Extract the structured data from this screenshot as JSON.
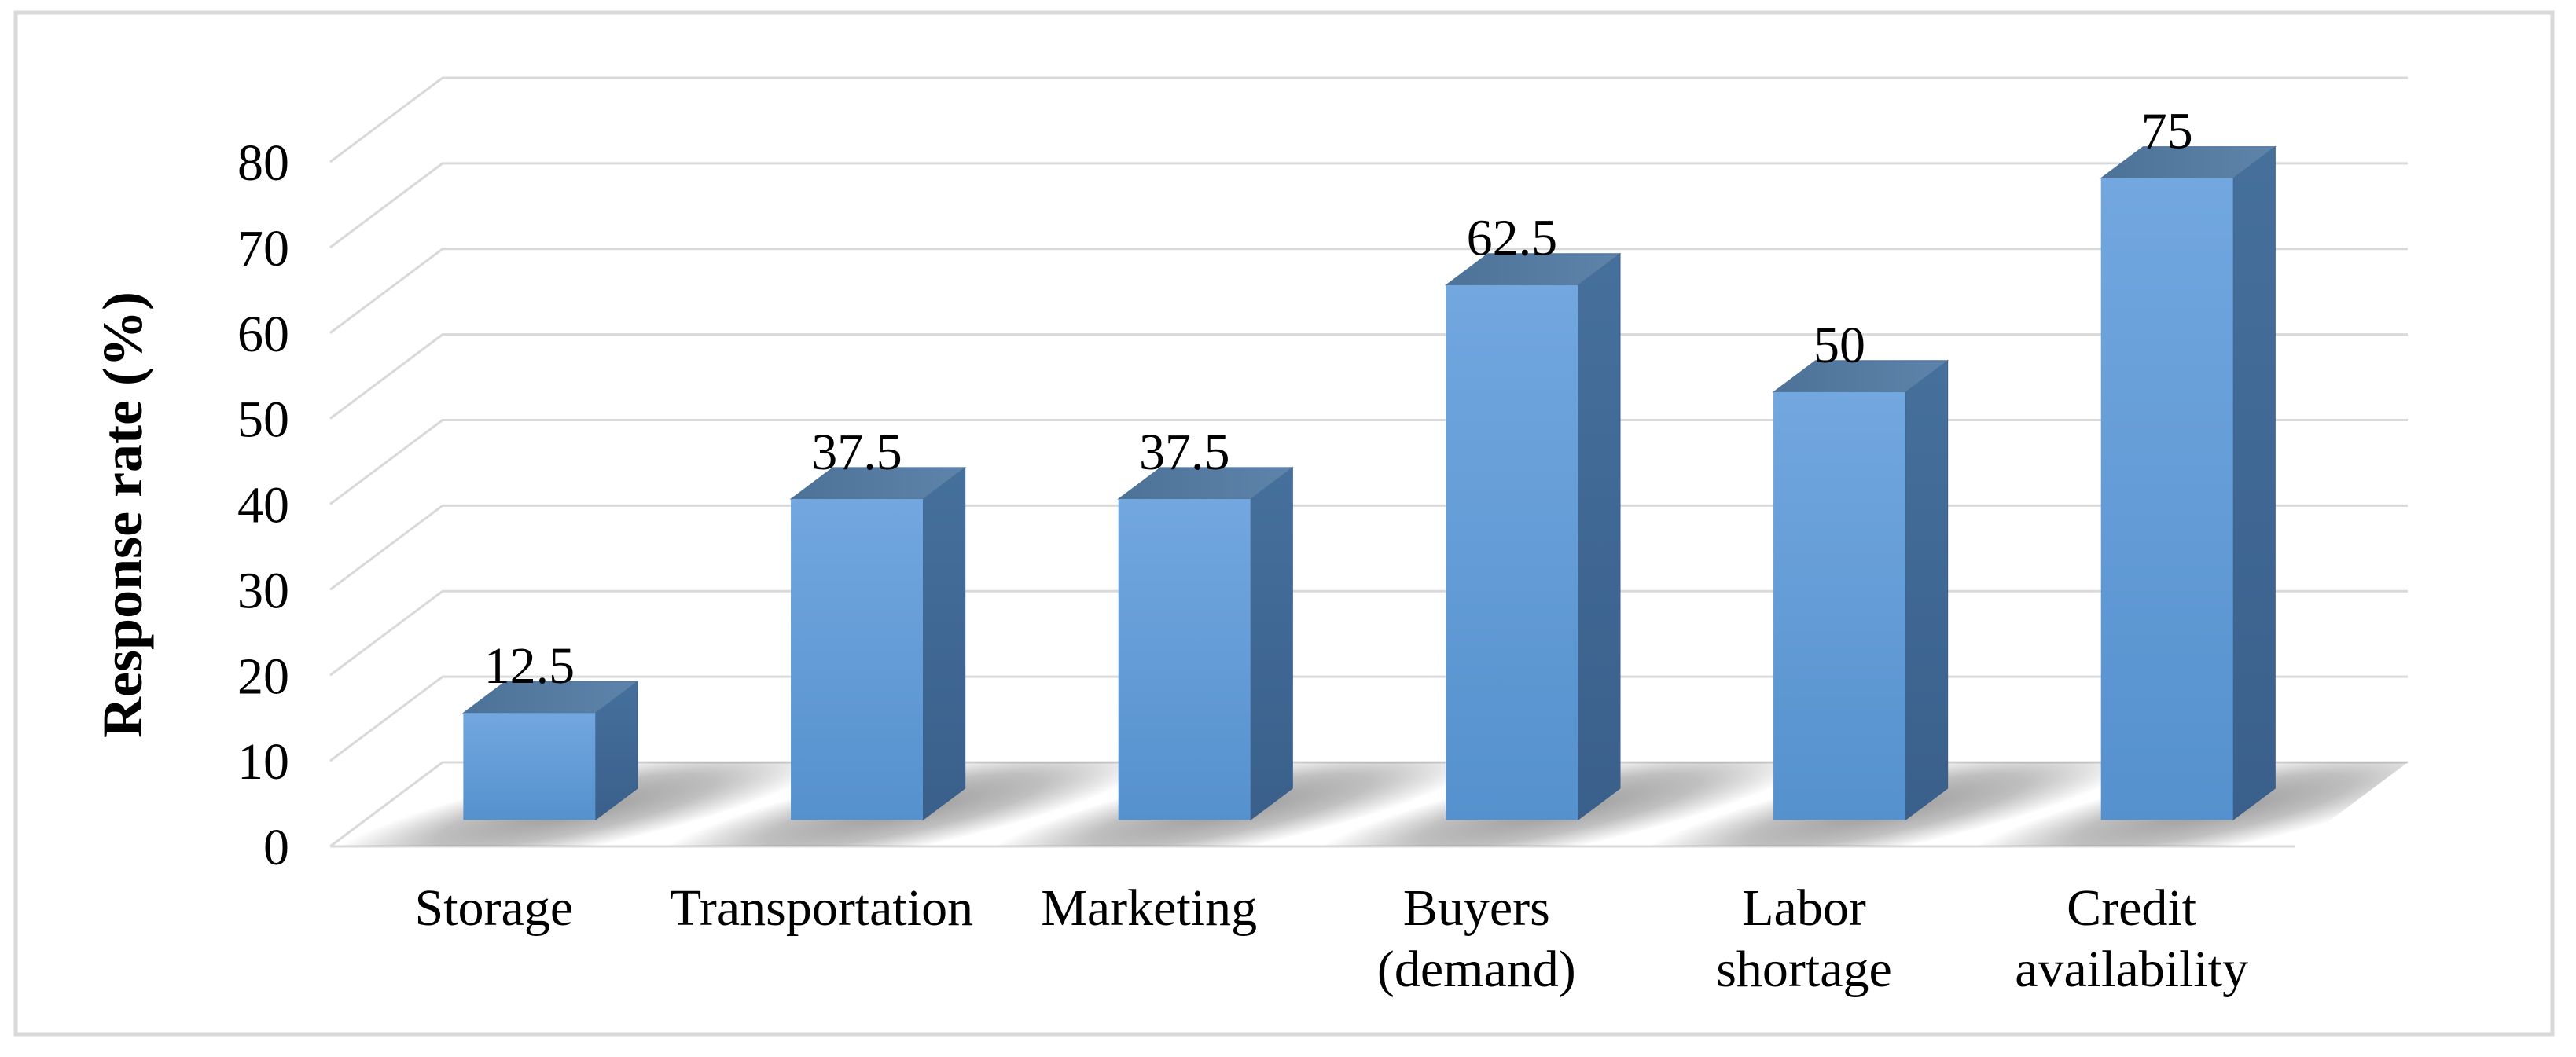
{
  "chart_frame": {
    "background_color": "#FFFFFF",
    "border_color": "#D9D9D9"
  },
  "chart_data": {
    "type": "bar",
    "variant": "3d-column",
    "title": "",
    "xlabel": "",
    "ylabel": "Response rate (%)",
    "categories": [
      "Storage",
      "Transportation",
      "Marketing",
      "Buyers (demand)",
      "Labor shortage",
      "Credit availability"
    ],
    "category_label_lines": [
      [
        "Storage"
      ],
      [
        "Transportation"
      ],
      [
        "Marketing"
      ],
      [
        "Buyers",
        "(demand)"
      ],
      [
        "Labor",
        "shortage"
      ],
      [
        "Credit",
        "availability"
      ]
    ],
    "values": [
      12.5,
      37.5,
      37.5,
      62.5,
      50,
      75
    ],
    "data_labels": [
      "12.5",
      "37.5",
      "37.5",
      "62.5",
      "50",
      "75"
    ],
    "ylim": [
      0,
      80
    ],
    "yticks": [
      0,
      10,
      20,
      30,
      40,
      50,
      60,
      70,
      80
    ],
    "ytick_labels": [
      "0",
      "10",
      "20",
      "30",
      "40",
      "50",
      "60",
      "70",
      "80"
    ],
    "grid": true,
    "legend": false,
    "colors": {
      "bar_base": "#5B9BD5",
      "bar_front_top": "#72A7DF",
      "bar_front_bottom": "#5591CE",
      "bar_top_left": "#4D7298",
      "bar_top_right": "#5E84AB",
      "bar_side_top": "#46709C",
      "bar_side_bottom": "#3A5F8B",
      "gridline": "#D9D9D9",
      "axis_text": "#000000",
      "shadow": "#4A4A4A"
    }
  }
}
